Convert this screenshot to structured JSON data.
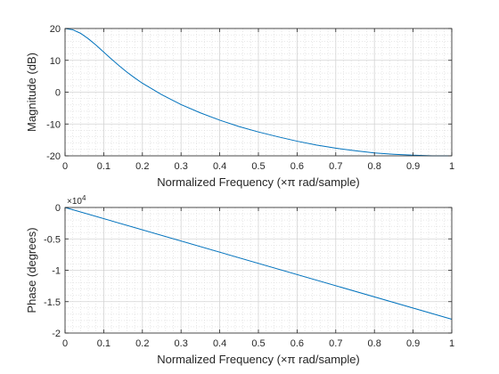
{
  "chart_data": [
    {
      "type": "line",
      "xlabel": "Normalized Frequency  (×π rad/sample)",
      "ylabel": "Magnitude (dB)",
      "xlim": [
        0,
        1
      ],
      "ylim": [
        -20,
        20
      ],
      "xticks": [
        0,
        0.1,
        0.2,
        0.3,
        0.4,
        0.5,
        0.6,
        0.7,
        0.8,
        0.9,
        1
      ],
      "xtick_labels": [
        "0",
        "0.1",
        "0.2",
        "0.3",
        "0.4",
        "0.5",
        "0.6",
        "0.7",
        "0.8",
        "0.9",
        "1"
      ],
      "yticks": [
        20,
        10,
        0,
        -10,
        -20
      ],
      "ytick_labels": [
        "20",
        "10",
        "0",
        "-10",
        "-20"
      ],
      "grid": true,
      "minor_grid": true,
      "line_color": "#0072bd",
      "series": [
        {
          "x": [
            0,
            0.02,
            0.04,
            0.06,
            0.08,
            0.1,
            0.12,
            0.14,
            0.16,
            0.18,
            0.2,
            0.25,
            0.3,
            0.35,
            0.4,
            0.45,
            0.5,
            0.55,
            0.6,
            0.65,
            0.7,
            0.75,
            0.8,
            0.85,
            0.9,
            0.95,
            1.0
          ],
          "y": [
            20,
            19.6,
            18.5,
            16.8,
            14.8,
            12.6,
            10.4,
            8.3,
            6.3,
            4.5,
            2.8,
            -0.8,
            -3.9,
            -6.5,
            -8.8,
            -10.8,
            -12.5,
            -14,
            -15.4,
            -16.6,
            -17.6,
            -18.4,
            -19.1,
            -19.5,
            -19.8,
            -20,
            -20
          ]
        }
      ]
    },
    {
      "type": "line",
      "xlabel": "Normalized Frequency  (×π rad/sample)",
      "ylabel": "Phase (degrees)",
      "xlim": [
        0,
        1
      ],
      "ylim": [
        -2,
        0
      ],
      "y_exponent_label": "×10",
      "y_exponent_power": "4",
      "xticks": [
        0,
        0.1,
        0.2,
        0.3,
        0.4,
        0.5,
        0.6,
        0.7,
        0.8,
        0.9,
        1
      ],
      "xtick_labels": [
        "0",
        "0.1",
        "0.2",
        "0.3",
        "0.4",
        "0.5",
        "0.6",
        "0.7",
        "0.8",
        "0.9",
        "1"
      ],
      "yticks": [
        0,
        -0.5,
        -1,
        -1.5,
        -2
      ],
      "ytick_labels": [
        "0",
        "-0.5",
        "-1",
        "-1.5",
        "-2"
      ],
      "grid": true,
      "minor_grid": true,
      "line_color": "#0072bd",
      "series": [
        {
          "x": [
            0,
            1
          ],
          "y": [
            0,
            -1.78
          ]
        }
      ]
    }
  ]
}
